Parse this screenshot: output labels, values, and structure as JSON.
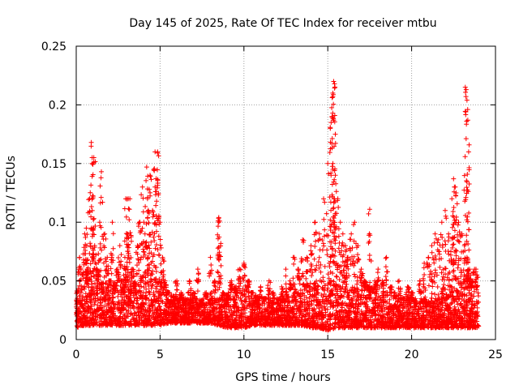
{
  "chart_data": {
    "type": "scatter",
    "title": "Day 145 of 2025, Rate Of TEC Index for receiver mtbu",
    "xlabel": "GPS time / hours",
    "ylabel": "ROTI / TECUs",
    "xlim": [
      0,
      25
    ],
    "ylim": [
      0,
      0.25
    ],
    "xticks": [
      0,
      5,
      10,
      15,
      20,
      25
    ],
    "yticks": [
      0,
      0.05,
      0.1,
      0.15,
      0.2,
      0.25
    ],
    "ytick_labels": [
      "0",
      "0.05",
      "0.1",
      "0.15",
      "0.2",
      "0.25"
    ],
    "grid": true,
    "marker": "+",
    "color": "#ff0000",
    "series": [
      {
        "name": "ROTI",
        "x": [
          0.05,
          0.2,
          0.35,
          0.5,
          0.65,
          0.8,
          0.95,
          1.1,
          1.25,
          1.4,
          1.55,
          1.7,
          1.85,
          2.0,
          2.15,
          2.3,
          2.45,
          2.6,
          2.75,
          2.9,
          3.05,
          3.2,
          3.35,
          3.5,
          3.65,
          3.8,
          3.95,
          4.1,
          4.25,
          4.4,
          4.55,
          4.7,
          4.85,
          5.0,
          5.15,
          5.3,
          5.5,
          5.75,
          6.0,
          6.25,
          6.5,
          6.75,
          7.0,
          7.25,
          7.5,
          7.75,
          8.0,
          8.25,
          8.5,
          8.75,
          9.0,
          9.25,
          9.5,
          9.75,
          10.0,
          10.25,
          10.5,
          10.75,
          11.0,
          11.25,
          11.5,
          11.75,
          12.0,
          12.25,
          12.5,
          12.75,
          13.0,
          13.25,
          13.5,
          13.75,
          14.0,
          14.25,
          14.5,
          14.75,
          15.0,
          15.15,
          15.3,
          15.45,
          15.6,
          15.75,
          15.9,
          16.05,
          16.2,
          16.4,
          16.6,
          16.8,
          17.0,
          17.2,
          17.4,
          17.6,
          17.8,
          18.0,
          18.25,
          18.5,
          18.75,
          19.0,
          19.25,
          19.5,
          19.75,
          20.0,
          20.25,
          20.5,
          20.75,
          21.0,
          21.2,
          21.4,
          21.6,
          21.8,
          22.0,
          22.2,
          22.4,
          22.6,
          22.8,
          23.0,
          23.15,
          23.3,
          23.45,
          23.6,
          23.75,
          23.9,
          0.9,
          0.95,
          1.05,
          4.7,
          4.85,
          8.5,
          8.55,
          15.2,
          15.25,
          15.3,
          15.35,
          15.4,
          15.45,
          17.5,
          23.2,
          23.25,
          23.3,
          23.35,
          23.4,
          22.5,
          22.55,
          22.65,
          4.2,
          4.35,
          2.95,
          3.1,
          1.5,
          0.6
        ],
        "y": [
          0.02,
          0.07,
          0.03,
          0.09,
          0.05,
          0.12,
          0.15,
          0.08,
          0.06,
          0.1,
          0.04,
          0.09,
          0.07,
          0.05,
          0.1,
          0.04,
          0.06,
          0.08,
          0.05,
          0.07,
          0.09,
          0.12,
          0.06,
          0.04,
          0.08,
          0.1,
          0.13,
          0.09,
          0.12,
          0.14,
          0.11,
          0.13,
          0.16,
          0.1,
          0.07,
          0.05,
          0.04,
          0.03,
          0.05,
          0.04,
          0.03,
          0.05,
          0.04,
          0.06,
          0.03,
          0.04,
          0.07,
          0.05,
          0.1,
          0.04,
          0.03,
          0.05,
          0.04,
          0.06,
          0.065,
          0.05,
          0.04,
          0.03,
          0.045,
          0.035,
          0.05,
          0.04,
          0.03,
          0.045,
          0.06,
          0.05,
          0.07,
          0.06,
          0.085,
          0.07,
          0.08,
          0.1,
          0.09,
          0.12,
          0.15,
          0.18,
          0.21,
          0.14,
          0.12,
          0.1,
          0.09,
          0.08,
          0.07,
          0.09,
          0.1,
          0.08,
          0.06,
          0.05,
          0.045,
          0.04,
          0.05,
          0.06,
          0.05,
          0.07,
          0.045,
          0.04,
          0.05,
          0.035,
          0.045,
          0.04,
          0.03,
          0.05,
          0.065,
          0.07,
          0.08,
          0.09,
          0.085,
          0.1,
          0.11,
          0.09,
          0.12,
          0.13,
          0.1,
          0.09,
          0.08,
          0.07,
          0.06,
          0.05,
          0.06,
          0.055,
          0.168,
          0.155,
          0.155,
          0.16,
          0.159,
          0.104,
          0.101,
          0.185,
          0.19,
          0.207,
          0.22,
          0.218,
          0.175,
          0.111,
          0.215,
          0.213,
          0.204,
          0.187,
          0.16,
          0.137,
          0.13,
          0.125,
          0.147,
          0.128,
          0.12,
          0.12,
          0.143,
          0.095
        ],
        "dense_band": {
          "description": "continuous dense background band of measurements",
          "x": [
            0,
            0.5,
            1,
            1.5,
            2,
            2.5,
            3,
            3.5,
            4,
            4.5,
            5,
            5.5,
            6,
            6.5,
            7,
            7.5,
            8,
            8.5,
            9,
            9.5,
            10,
            10.5,
            11,
            11.5,
            12,
            12.5,
            13,
            13.5,
            14,
            14.5,
            15,
            15.5,
            16,
            16.5,
            17,
            17.5,
            18,
            18.5,
            19,
            19.5,
            20,
            20.5,
            21,
            21.5,
            22,
            22.5,
            23,
            23.5,
            24
          ],
          "low": [
            0.01,
            0.012,
            0.012,
            0.012,
            0.012,
            0.012,
            0.012,
            0.012,
            0.012,
            0.012,
            0.012,
            0.014,
            0.014,
            0.014,
            0.014,
            0.014,
            0.014,
            0.012,
            0.01,
            0.01,
            0.01,
            0.012,
            0.012,
            0.012,
            0.012,
            0.012,
            0.012,
            0.012,
            0.01,
            0.01,
            0.008,
            0.01,
            0.01,
            0.01,
            0.01,
            0.01,
            0.01,
            0.01,
            0.01,
            0.01,
            0.01,
            0.01,
            0.01,
            0.01,
            0.01,
            0.01,
            0.01,
            0.01,
            0.01
          ],
          "high": [
            0.05,
            0.06,
            0.055,
            0.05,
            0.05,
            0.05,
            0.05,
            0.05,
            0.055,
            0.055,
            0.05,
            0.04,
            0.035,
            0.035,
            0.035,
            0.035,
            0.035,
            0.035,
            0.04,
            0.045,
            0.045,
            0.04,
            0.035,
            0.035,
            0.035,
            0.035,
            0.04,
            0.045,
            0.05,
            0.05,
            0.05,
            0.05,
            0.05,
            0.045,
            0.045,
            0.045,
            0.04,
            0.04,
            0.035,
            0.035,
            0.035,
            0.035,
            0.035,
            0.04,
            0.045,
            0.05,
            0.05,
            0.045,
            0.04
          ]
        }
      }
    ]
  }
}
